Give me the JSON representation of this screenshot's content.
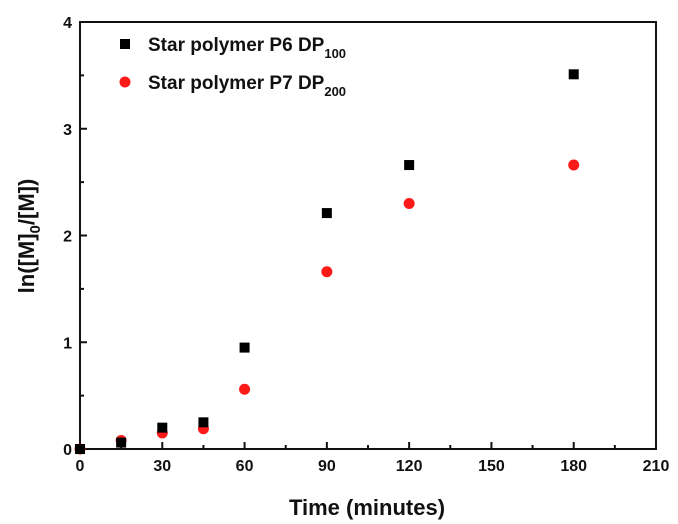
{
  "chart_data": {
    "type": "scatter",
    "title": "",
    "xlabel": "Time (minutes)",
    "ylabel": {
      "prefix": "ln([M]",
      "sub": "0",
      "suffix": "/[M])"
    },
    "xlim": [
      0,
      210
    ],
    "ylim": [
      0,
      4
    ],
    "xticks": [
      0,
      30,
      60,
      90,
      120,
      150,
      180,
      210
    ],
    "yticks": [
      0,
      1,
      2,
      3,
      4
    ],
    "grid": false,
    "legend_position": "top-left",
    "series": [
      {
        "name": "Star polymer P6 DP",
        "name_sub": "100",
        "marker": "square",
        "color": "#000000",
        "x": [
          0,
          15,
          30,
          45,
          60,
          90,
          120,
          180
        ],
        "y": [
          0.0,
          0.06,
          0.2,
          0.25,
          0.95,
          2.21,
          2.66,
          3.51
        ]
      },
      {
        "name": "Star polymer P7 DP",
        "name_sub": "200",
        "marker": "circle",
        "color": "#ff1a1a",
        "x": [
          0,
          15,
          30,
          45,
          60,
          90,
          120,
          180
        ],
        "y": [
          0.0,
          0.08,
          0.15,
          0.19,
          0.56,
          1.66,
          2.3,
          2.66
        ]
      }
    ]
  }
}
